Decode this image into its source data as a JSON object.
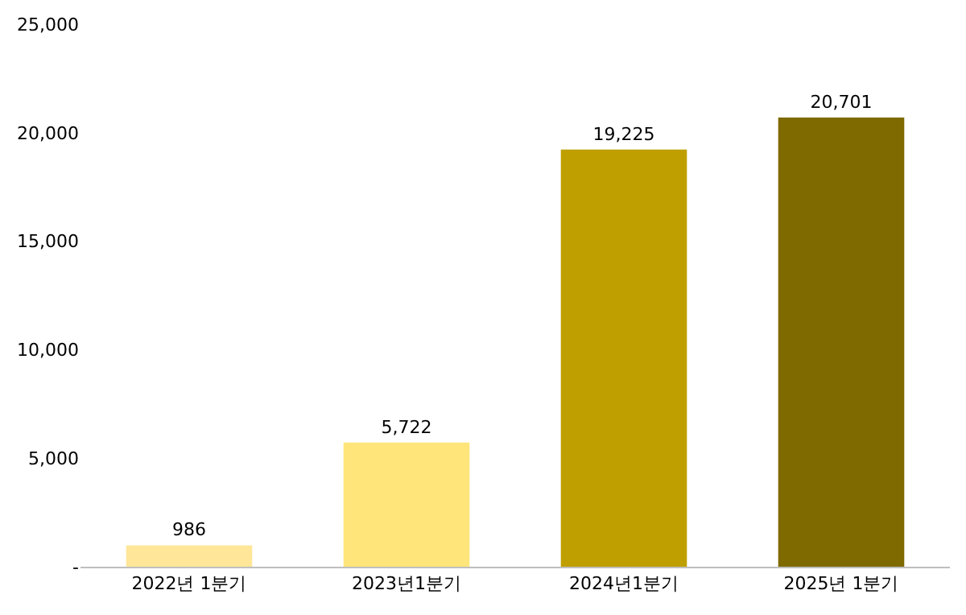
{
  "chart_data": {
    "type": "bar",
    "categories": [
      "2022년 1분기",
      "2023년1분기",
      "2024년1분기",
      "2025년 1분기"
    ],
    "values": [
      986,
      5722,
      19225,
      20701
    ],
    "value_labels": [
      "986",
      "5,722",
      "19,225",
      "20,701"
    ],
    "colors": [
      "#ffe699",
      "#ffe57a",
      "#bf9f00",
      "#7f6a00"
    ],
    "ylim": [
      0,
      25000
    ],
    "yticks": [
      {
        "value": 0,
        "label": "-"
      },
      {
        "value": 5000,
        "label": "5,000"
      },
      {
        "value": 10000,
        "label": "10,000"
      },
      {
        "value": 15000,
        "label": "15,000"
      },
      {
        "value": 20000,
        "label": "20,000"
      },
      {
        "value": 25000,
        "label": "25,000"
      }
    ],
    "grid": false
  }
}
